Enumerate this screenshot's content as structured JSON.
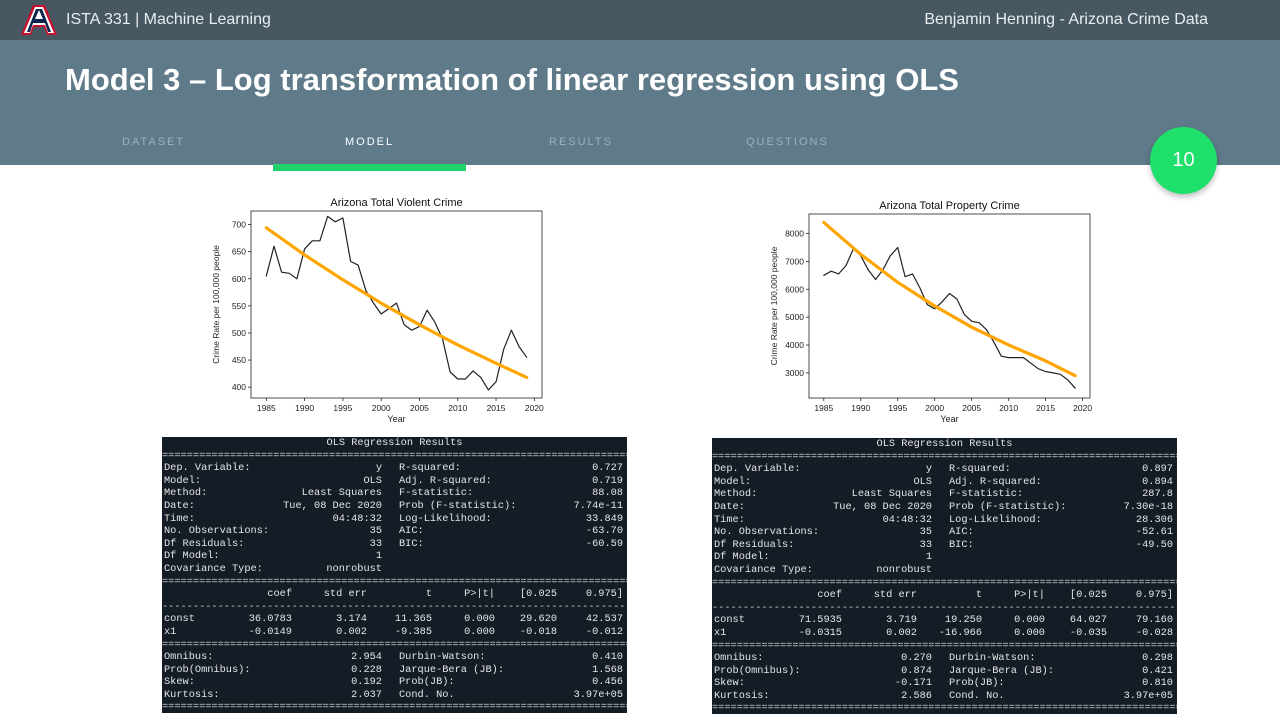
{
  "topbar": {
    "course": "ISTA 331 | Machine Learning",
    "author": "Benjamin Henning - Arizona Crime Data",
    "logo_icon": "university-a-logo"
  },
  "header": {
    "title": "Model 3 – Log transformation of linear regression using OLS",
    "tabs": [
      {
        "label": "DATASET",
        "active": false
      },
      {
        "label": "MODEL",
        "active": true
      },
      {
        "label": "RESULTS",
        "active": false
      },
      {
        "label": "QUESTIONS",
        "active": false
      }
    ],
    "accent_color": "#20d26c"
  },
  "page_number": "10",
  "chart_data": [
    {
      "type": "line",
      "title": "Arizona Total Violent Crime",
      "xlabel": "Year",
      "ylabel": "Crime Rate per 100,000 people",
      "xlim": [
        1983,
        2021
      ],
      "ylim": [
        380,
        725
      ],
      "xticks": [
        1985,
        1990,
        1995,
        2000,
        2005,
        2010,
        2015,
        2020
      ],
      "yticks": [
        400,
        450,
        500,
        550,
        600,
        650,
        700
      ],
      "grid": false,
      "series": [
        {
          "name": "",
          "color": "#222222",
          "x": [
            1985,
            1986,
            1987,
            1988,
            1989,
            1990,
            1991,
            1992,
            1993,
            1994,
            1995,
            1996,
            1997,
            1998,
            1999,
            2000,
            2001,
            2002,
            2003,
            2004,
            2005,
            2006,
            2007,
            2008,
            2009,
            2010,
            2011,
            2012,
            2013,
            2014,
            2015,
            2016,
            2017,
            2018,
            2019
          ],
          "y": [
            605,
            660,
            612,
            610,
            600,
            655,
            670,
            670,
            715,
            705,
            712,
            632,
            625,
            578,
            555,
            535,
            545,
            555,
            515,
            505,
            512,
            542,
            520,
            490,
            428,
            415,
            415,
            430,
            418,
            395,
            410,
            470,
            505,
            475,
            455
          ]
        },
        {
          "name": "",
          "color": "#ffa500",
          "x": [
            1985,
            1990,
            1995,
            2000,
            2005,
            2010,
            2015,
            2019
          ],
          "y": [
            694,
            644,
            598,
            555,
            515,
            478,
            444,
            418
          ]
        }
      ]
    },
    {
      "type": "line",
      "title": "Arizona Total Property Crime",
      "xlabel": "Year",
      "ylabel": "Crime Rate per 100,000 people",
      "xlim": [
        1983,
        2021
      ],
      "ylim": [
        2100,
        8700
      ],
      "xticks": [
        1985,
        1990,
        1995,
        2000,
        2005,
        2010,
        2015,
        2020
      ],
      "yticks": [
        3000,
        4000,
        5000,
        6000,
        7000,
        8000
      ],
      "grid": false,
      "series": [
        {
          "name": "",
          "color": "#222222",
          "x": [
            1985,
            1986,
            1987,
            1988,
            1989,
            1990,
            1991,
            1992,
            1993,
            1994,
            1995,
            1996,
            1997,
            1998,
            1999,
            2000,
            2001,
            2002,
            2003,
            2004,
            2005,
            2006,
            2007,
            2008,
            2009,
            2010,
            2011,
            2012,
            2013,
            2014,
            2015,
            2016,
            2017,
            2018,
            2019
          ],
          "y": [
            6500,
            6650,
            6550,
            6850,
            7450,
            7200,
            6700,
            6350,
            6700,
            7200,
            7500,
            6450,
            6550,
            6050,
            5450,
            5300,
            5550,
            5850,
            5650,
            5100,
            4850,
            4800,
            4550,
            4100,
            3600,
            3550,
            3550,
            3550,
            3350,
            3150,
            3050,
            3000,
            2950,
            2750,
            2450
          ]
        },
        {
          "name": "",
          "color": "#ffa500",
          "x": [
            1985,
            1990,
            1995,
            2000,
            2005,
            2010,
            2015,
            2019
          ],
          "y": [
            8400,
            7250,
            6250,
            5400,
            4640,
            4000,
            3430,
            2900
          ]
        }
      ]
    }
  ],
  "ols_left": {
    "title": "OLS Regression Results",
    "lines": [
      {
        "a": "Dep. Variable:",
        "b": "y",
        "c": "R-squared:",
        "d": "0.727"
      },
      {
        "a": "Model:",
        "b": "OLS",
        "c": "Adj. R-squared:",
        "d": "0.719"
      },
      {
        "a": "Method:",
        "b": "Least Squares",
        "c": "F-statistic:",
        "d": "88.08"
      },
      {
        "a": "Date:",
        "b": "Tue, 08 Dec 2020",
        "c": "Prob (F-statistic):",
        "d": "7.74e-11"
      },
      {
        "a": "Time:",
        "b": "04:48:32",
        "c": "Log-Likelihood:",
        "d": "33.849"
      },
      {
        "a": "No. Observations:",
        "b": "35",
        "c": "AIC:",
        "d": "-63.70"
      },
      {
        "a": "Df Residuals:",
        "b": "33",
        "c": "BIC:",
        "d": "-60.59"
      },
      {
        "a": "Df Model:",
        "b": "1",
        "c": "",
        "d": ""
      },
      {
        "a": "Covariance Type:",
        "b": "nonrobust",
        "c": "",
        "d": ""
      }
    ],
    "coef_header": [
      "coef",
      "std err",
      "t",
      "P>|t|",
      "[0.025",
      "0.975]"
    ],
    "coef_rows": [
      {
        "name": "const",
        "vals": [
          "36.0783",
          "3.174",
          "11.365",
          "0.000",
          "29.620",
          "42.537"
        ]
      },
      {
        "name": "x1",
        "vals": [
          "-0.0149",
          "0.002",
          "-9.385",
          "0.000",
          "-0.018",
          "-0.012"
        ]
      }
    ],
    "diag": [
      {
        "a": "Omnibus:",
        "b": "2.954",
        "c": "Durbin-Watson:",
        "d": "0.410"
      },
      {
        "a": "Prob(Omnibus):",
        "b": "0.228",
        "c": "Jarque-Bera (JB):",
        "d": "1.568"
      },
      {
        "a": "Skew:",
        "b": "0.192",
        "c": "Prob(JB):",
        "d": "0.456"
      },
      {
        "a": "Kurtosis:",
        "b": "2.037",
        "c": "Cond. No.",
        "d": "3.97e+05"
      }
    ]
  },
  "ols_right": {
    "title": "OLS Regression Results",
    "lines": [
      {
        "a": "Dep. Variable:",
        "b": "y",
        "c": "R-squared:",
        "d": "0.897"
      },
      {
        "a": "Model:",
        "b": "OLS",
        "c": "Adj. R-squared:",
        "d": "0.894"
      },
      {
        "a": "Method:",
        "b": "Least Squares",
        "c": "F-statistic:",
        "d": "287.8"
      },
      {
        "a": "Date:",
        "b": "Tue, 08 Dec 2020",
        "c": "Prob (F-statistic):",
        "d": "7.30e-18"
      },
      {
        "a": "Time:",
        "b": "04:48:32",
        "c": "Log-Likelihood:",
        "d": "28.306"
      },
      {
        "a": "No. Observations:",
        "b": "35",
        "c": "AIC:",
        "d": "-52.61"
      },
      {
        "a": "Df Residuals:",
        "b": "33",
        "c": "BIC:",
        "d": "-49.50"
      },
      {
        "a": "Df Model:",
        "b": "1",
        "c": "",
        "d": ""
      },
      {
        "a": "Covariance Type:",
        "b": "nonrobust",
        "c": "",
        "d": ""
      }
    ],
    "coef_header": [
      "coef",
      "std err",
      "t",
      "P>|t|",
      "[0.025",
      "0.975]"
    ],
    "coef_rows": [
      {
        "name": "const",
        "vals": [
          "71.5935",
          "3.719",
          "19.250",
          "0.000",
          "64.027",
          "79.160"
        ]
      },
      {
        "name": "x1",
        "vals": [
          "-0.0315",
          "0.002",
          "-16.966",
          "0.000",
          "-0.035",
          "-0.028"
        ]
      }
    ],
    "diag": [
      {
        "a": "Omnibus:",
        "b": "0.270",
        "c": "Durbin-Watson:",
        "d": "0.298"
      },
      {
        "a": "Prob(Omnibus):",
        "b": "0.874",
        "c": "Jarque-Bera (JB):",
        "d": "0.421"
      },
      {
        "a": "Skew:",
        "b": "-0.171",
        "c": "Prob(JB):",
        "d": "0.810"
      },
      {
        "a": "Kurtosis:",
        "b": "2.586",
        "c": "Cond. No.",
        "d": "3.97e+05"
      }
    ]
  }
}
